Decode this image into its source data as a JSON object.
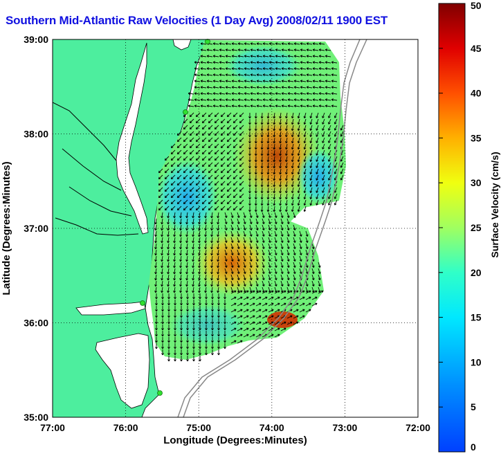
{
  "title": "Southern Mid-Atlantic Raw Velocities (1 Day Avg) 2008/02/11 1900 EST",
  "map": {
    "x_axis_label": "Longitude (Degrees:Minutes)",
    "y_axis_label": "Latitude (Degrees:Minutes)",
    "x_ticks": [
      "77:00",
      "76:00",
      "75:00",
      "74:00",
      "73:00",
      "72:00"
    ],
    "y_ticks": [
      "39:00",
      "38:00",
      "37:00",
      "36:00",
      "35:00"
    ],
    "lon_range": [
      -77,
      -72
    ],
    "lat_range": [
      35,
      39
    ],
    "land_color": "#4dee9e",
    "grid": "dotted"
  },
  "colorbar": {
    "label": "Surface Velocity (cm/s)",
    "ticks": [
      "0",
      "5",
      "10",
      "15",
      "20",
      "25",
      "30",
      "35",
      "40",
      "45",
      "50"
    ],
    "min": 0,
    "max": 50,
    "colormap": "jet"
  },
  "chart_data": {
    "type": "heatmap",
    "title": "Southern Mid-Atlantic Raw Velocities (1 Day Avg) 2008/02/11 1900 EST",
    "xlabel": "Longitude (Degrees:Minutes)",
    "ylabel": "Latitude (Degrees:Minutes)",
    "colorbar_label": "Surface Velocity (cm/s)",
    "xlim": [
      -77,
      -72
    ],
    "ylim": [
      35,
      39
    ],
    "clim": [
      0,
      50
    ],
    "grid": true,
    "high_speed_regions": [
      {
        "lon": -73.8,
        "lat": 37.6,
        "speed": 36
      },
      {
        "lon": -74.4,
        "lat": 36.7,
        "speed": 32
      },
      {
        "lon": -73.9,
        "lat": 35.95,
        "speed": 40
      },
      {
        "lon": -74.3,
        "lat": 38.3,
        "speed": 30
      }
    ],
    "low_speed_regions": [
      {
        "lon": -75.3,
        "lat": 37.4,
        "speed": 8
      },
      {
        "lon": -73.5,
        "lat": 37.2,
        "speed": 10
      },
      {
        "lon": -74.3,
        "lat": 38.8,
        "speed": 12
      }
    ],
    "stations": [
      {
        "lon": -74.85,
        "lat": 38.98
      },
      {
        "lon": -75.17,
        "lat": 38.22
      },
      {
        "lon": -75.73,
        "lat": 36.2
      },
      {
        "lon": -75.5,
        "lat": 35.25
      }
    ]
  }
}
